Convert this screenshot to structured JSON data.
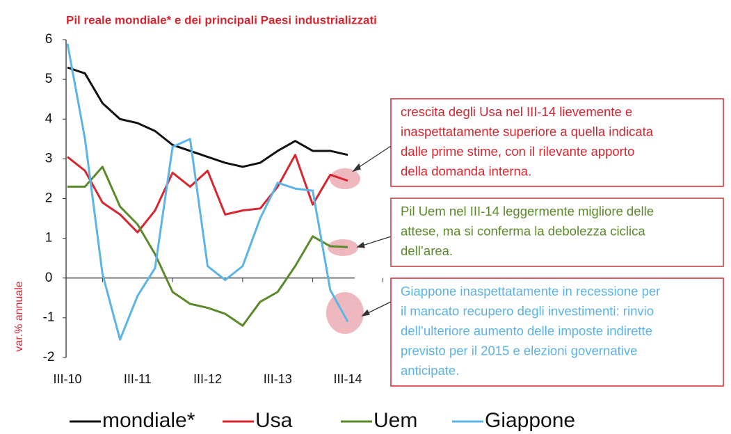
{
  "chart_data": {
    "type": "line",
    "subtitle": "Pil reale mondiale* e dei principali Paesi industrializzati",
    "y_label": "var.% annuale",
    "categories": [
      "III-10",
      null,
      null,
      null,
      "III-11",
      null,
      null,
      null,
      "III-12",
      null,
      null,
      null,
      "III-13",
      null,
      null,
      null,
      "III-14"
    ],
    "ylim": [
      -2,
      6
    ],
    "yticks": [
      -2,
      -1,
      0,
      1,
      2,
      3,
      4,
      5,
      6
    ],
    "series": [
      {
        "name": "mondiale*",
        "color": "#111111",
        "values": [
          5.3,
          5.15,
          4.4,
          4.0,
          3.9,
          3.7,
          3.35,
          3.2,
          3.05,
          2.9,
          2.8,
          2.9,
          3.2,
          3.45,
          3.2,
          3.2,
          3.1
        ]
      },
      {
        "name": "Usa",
        "color": "#d7262f",
        "values": [
          3.05,
          2.7,
          1.9,
          1.6,
          1.15,
          1.7,
          2.65,
          2.3,
          2.7,
          1.6,
          1.7,
          1.75,
          2.3,
          3.1,
          1.85,
          2.6,
          2.45
        ]
      },
      {
        "name": "Uem",
        "color": "#5a8a2a",
        "values": [
          2.3,
          2.3,
          2.8,
          1.8,
          1.35,
          0.6,
          -0.35,
          -0.65,
          -0.75,
          -0.9,
          -1.2,
          -0.6,
          -0.35,
          0.3,
          1.05,
          0.8,
          0.78
        ]
      },
      {
        "name": "Giappone",
        "color": "#5bb4e5",
        "values": [
          5.9,
          3.5,
          0.1,
          -1.55,
          -0.45,
          0.25,
          3.3,
          3.5,
          0.3,
          -0.05,
          0.3,
          1.5,
          2.4,
          2.25,
          2.2,
          -0.3,
          -1.1
        ]
      }
    ],
    "annotations": [
      {
        "color": "#d7262f",
        "lines": [
          "crescita degli Usa nel III-14 lievemente e",
          "inaspettatamente superiore a quella indicata",
          "dalle prime stime, con il rilevante apporto",
          "della domanda interna."
        ]
      },
      {
        "color": "#5a8a2a",
        "lines": [
          "Pil Uem nel III-14 leggermente migliore delle",
          "attese, ma si conferma la debolezza ciclica",
          "dell’area."
        ]
      },
      {
        "color": "#5bb4e5",
        "lines": [
          "Giappone inaspettatamente in recessione per",
          "il mancato recupero degli investimenti: rinvio",
          "dell’ulteriore aumento delle imposte indirette",
          "previsto per il 2015 e elezioni governative",
          "anticipate."
        ]
      }
    ]
  }
}
